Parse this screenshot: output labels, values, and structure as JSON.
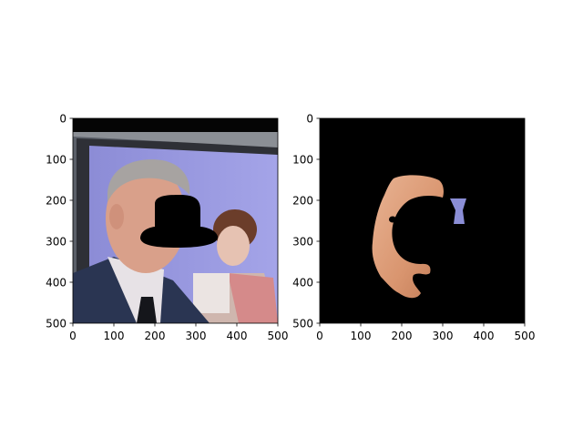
{
  "figure": {
    "colors": {
      "background": "#ffffff",
      "axis": "#000000",
      "mask_background": "#000000"
    },
    "panels": [
      {
        "name": "left-panel",
        "image": "photo-with-black-mask",
        "x_ticks": [
          "0",
          "100",
          "200",
          "300",
          "400",
          "500"
        ],
        "y_ticks": [
          "0",
          "100",
          "200",
          "300",
          "400",
          "500"
        ],
        "xlim": [
          0,
          500
        ],
        "ylim": [
          500,
          0
        ]
      },
      {
        "name": "right-panel",
        "image": "skin-segmentation-mask",
        "x_ticks": [
          "0",
          "100",
          "200",
          "300",
          "400",
          "500"
        ],
        "y_ticks": [
          "0",
          "100",
          "200",
          "300",
          "400",
          "500"
        ],
        "xlim": [
          0,
          500
        ],
        "ylim": [
          500,
          0
        ]
      }
    ]
  }
}
